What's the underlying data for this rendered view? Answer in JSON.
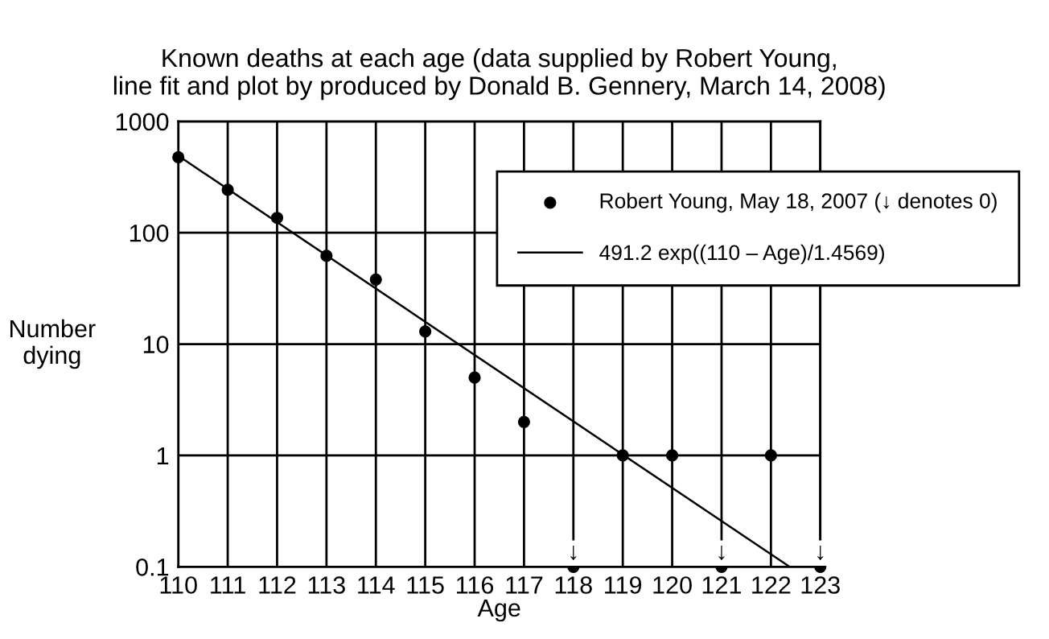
{
  "chart_data": {
    "type": "scatter",
    "title": "Known deaths at each age (data supplied by Robert Young,\nline fit and plot by produced by Donald B. Gennery, March 14, 2008)",
    "xlabel": "Age",
    "ylabel": "Number\ndying",
    "series": [
      {
        "name": "Robert Young, May 18, 2007 (↓ denotes 0)",
        "marker": "circle",
        "color": "#000000",
        "x": [
          110,
          111,
          112,
          113,
          114,
          115,
          116,
          117,
          119,
          120,
          122
        ],
        "values": [
          476,
          243,
          136,
          62,
          38,
          13,
          5,
          2,
          1,
          1,
          1
        ]
      },
      {
        "marker": "circle",
        "color": "#000000",
        "x": [
          118,
          121,
          123
        ],
        "values": [
          0.1,
          0.1,
          0.1
        ]
      },
      {
        "name": "491.2 exp((110 – Age)/1.4569)",
        "type": "line",
        "marker": "none",
        "line_style": "solid",
        "color": "#000000",
        "x": [
          110,
          122.38
        ],
        "values": [
          491.2,
          0.1
        ]
      }
    ],
    "annotations": [
      {
        "text": "↓",
        "x": 118,
        "y": 0.1
      },
      {
        "text": "↓",
        "x": 121,
        "y": 0.1
      },
      {
        "text": "↓",
        "x": 123,
        "y": 0.1
      }
    ],
    "log": "y",
    "xlim": [
      110,
      123
    ],
    "xticks": [
      110,
      111,
      112,
      113,
      114,
      115,
      116,
      117,
      118,
      119,
      120,
      121,
      122,
      123
    ],
    "ylim": [
      0.1,
      1000
    ],
    "yticks": [
      0.1,
      1,
      10,
      100,
      1000
    ],
    "grid": true,
    "legend": "top right"
  }
}
